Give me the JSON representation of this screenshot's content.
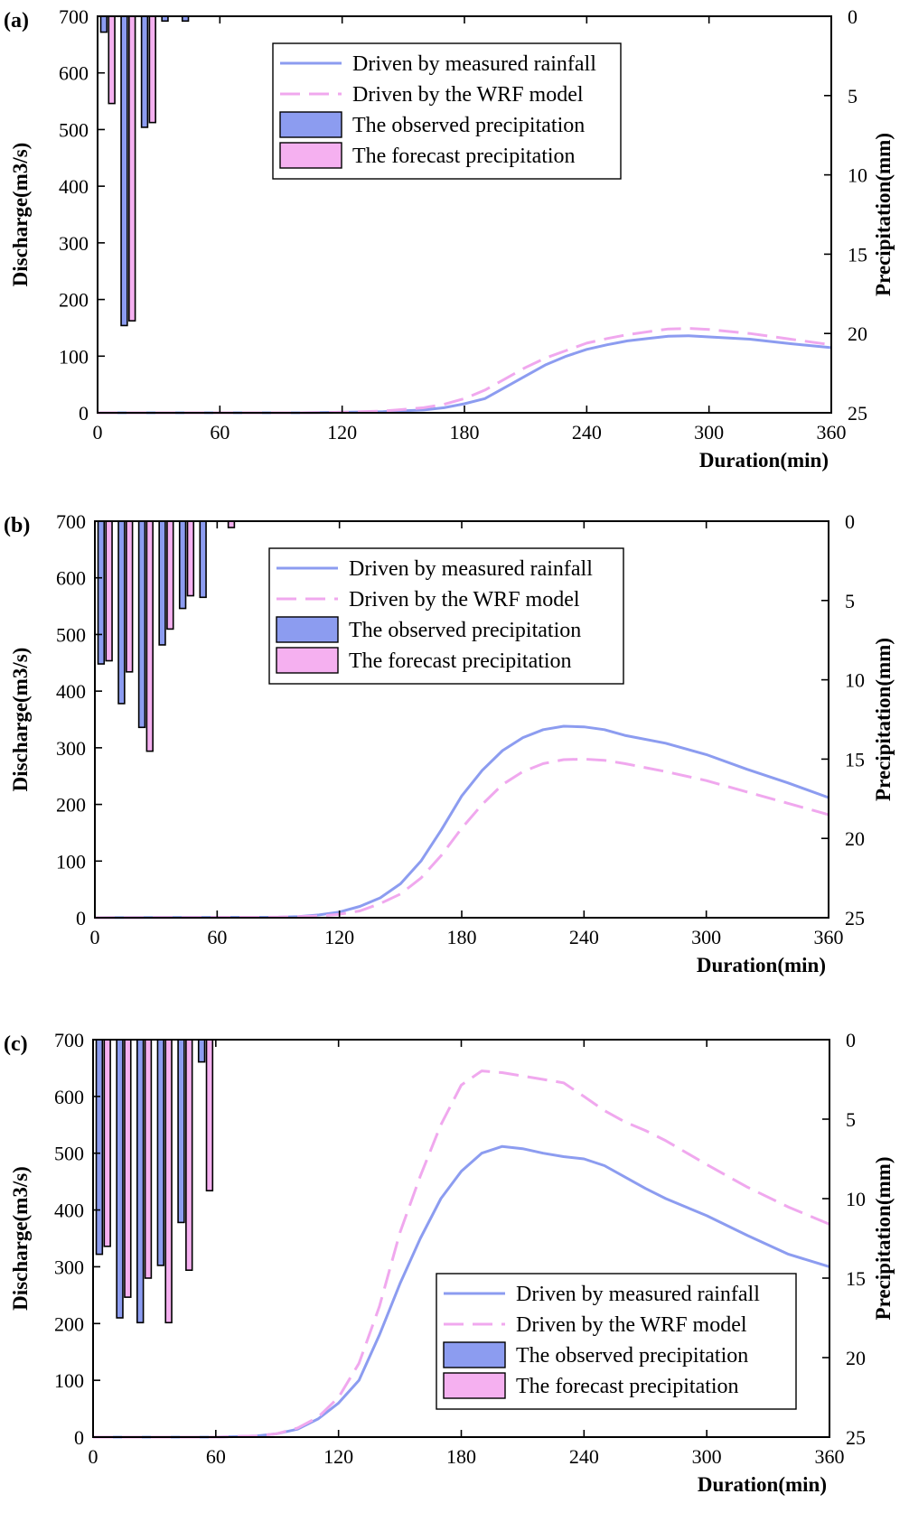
{
  "colors": {
    "measured": "#8c9cf0",
    "wrf": "#f0a8ee",
    "observed_bar": "#8c9cf0",
    "forecast_bar": "#f5b0f0",
    "axis": "#000000"
  },
  "chart_data": [
    {
      "type": "line",
      "panel_label": "(a)",
      "xlabel": "Duration(min)",
      "ylabel": "Discharge(m3/s)",
      "y2label": "Precipitation(mm)",
      "xlim": [
        0,
        360
      ],
      "ylim": [
        0,
        700
      ],
      "y2lim": [
        0,
        25
      ],
      "y2_inverted": true,
      "xticks": [
        0,
        60,
        120,
        180,
        240,
        300,
        360
      ],
      "yticks": [
        0,
        100,
        200,
        300,
        400,
        500,
        600,
        700
      ],
      "y2ticks": [
        0,
        5,
        10,
        15,
        20,
        25
      ],
      "legend_position": "top-center",
      "legend": [
        "Driven by measured rainfall",
        "Driven by the WRF model",
        "The observed precipitation",
        "The forecast precipitation"
      ],
      "series": [
        {
          "name": "Driven by measured rainfall",
          "style": "solid",
          "x": [
            0,
            100,
            120,
            140,
            160,
            170,
            180,
            190,
            200,
            210,
            220,
            230,
            240,
            250,
            260,
            270,
            280,
            290,
            300,
            320,
            340,
            360
          ],
          "y": [
            0,
            0,
            1,
            2,
            5,
            9,
            16,
            25,
            45,
            65,
            85,
            100,
            112,
            120,
            127,
            131,
            135,
            136,
            134,
            130,
            122,
            115
          ]
        },
        {
          "name": "Driven by the WRF model",
          "style": "dashed",
          "x": [
            0,
            100,
            120,
            140,
            160,
            170,
            180,
            190,
            200,
            210,
            220,
            230,
            240,
            250,
            260,
            270,
            280,
            290,
            300,
            320,
            340,
            360
          ],
          "y": [
            0,
            0,
            1,
            3,
            9,
            15,
            25,
            40,
            60,
            80,
            97,
            110,
            123,
            131,
            138,
            143,
            148,
            149,
            147,
            140,
            130,
            120
          ]
        }
      ],
      "bars": {
        "times": [
          5,
          15,
          25,
          35,
          45,
          55,
          65
        ],
        "observed": [
          1,
          19.5,
          7,
          0.3,
          0.3,
          0,
          0
        ],
        "forecast": [
          5.5,
          19.2,
          6.7,
          0,
          0,
          0,
          0
        ]
      }
    },
    {
      "type": "line",
      "panel_label": "(b)",
      "xlabel": "Duration(min)",
      "ylabel": "Discharge(m3/s)",
      "y2label": "Precipitation(mm)",
      "xlim": [
        0,
        360
      ],
      "ylim": [
        0,
        700
      ],
      "y2lim": [
        0,
        25
      ],
      "y2_inverted": true,
      "xticks": [
        0,
        60,
        120,
        180,
        240,
        300,
        360
      ],
      "yticks": [
        0,
        100,
        200,
        300,
        400,
        500,
        600,
        700
      ],
      "y2ticks": [
        0,
        5,
        10,
        15,
        20,
        25
      ],
      "legend_position": "top-center",
      "legend": [
        "Driven by measured rainfall",
        "Driven by the WRF model",
        "The observed precipitation",
        "The forecast precipitation"
      ],
      "series": [
        {
          "name": "Driven by measured rainfall",
          "style": "solid",
          "x": [
            0,
            90,
            100,
            110,
            120,
            130,
            140,
            150,
            160,
            170,
            180,
            190,
            200,
            210,
            220,
            230,
            240,
            250,
            260,
            280,
            300,
            320,
            340,
            360
          ],
          "y": [
            0,
            1,
            2,
            5,
            10,
            20,
            35,
            60,
            100,
            155,
            215,
            260,
            295,
            318,
            332,
            338,
            337,
            332,
            322,
            308,
            288,
            262,
            238,
            212
          ]
        },
        {
          "name": "Driven by the WRF model",
          "style": "dashed",
          "x": [
            0,
            90,
            100,
            110,
            120,
            130,
            140,
            150,
            160,
            170,
            180,
            190,
            200,
            210,
            220,
            230,
            240,
            250,
            260,
            280,
            300,
            320,
            340,
            360
          ],
          "y": [
            0,
            1,
            2,
            3,
            6,
            12,
            25,
            42,
            70,
            110,
            158,
            200,
            235,
            258,
            272,
            279,
            280,
            278,
            272,
            258,
            242,
            222,
            202,
            182
          ]
        }
      ],
      "bars": {
        "times": [
          5,
          15,
          25,
          35,
          45,
          55,
          65
        ],
        "observed": [
          9,
          11.5,
          13,
          7.8,
          5.5,
          4.8,
          0
        ],
        "forecast": [
          8.8,
          9.5,
          14.5,
          6.8,
          4.7,
          0,
          0.4
        ]
      }
    },
    {
      "type": "line",
      "panel_label": "(c)",
      "xlabel": "Duration(min)",
      "ylabel": "Discharge(m3/s)",
      "y2label": "Precipitation(mm)",
      "xlim": [
        0,
        360
      ],
      "ylim": [
        0,
        700
      ],
      "y2lim": [
        0,
        25
      ],
      "y2_inverted": true,
      "xticks": [
        0,
        60,
        120,
        180,
        240,
        300,
        360
      ],
      "yticks": [
        0,
        100,
        200,
        300,
        400,
        500,
        600,
        700
      ],
      "y2ticks": [
        0,
        5,
        10,
        15,
        20,
        25
      ],
      "legend_position": "bottom-right",
      "legend": [
        "Driven by measured rainfall",
        "Driven by the WRF model",
        "The observed precipitation",
        "The forecast precipitation"
      ],
      "series": [
        {
          "name": "Driven by measured rainfall",
          "style": "solid",
          "x": [
            0,
            60,
            80,
            90,
            100,
            110,
            120,
            130,
            140,
            150,
            160,
            170,
            180,
            190,
            200,
            210,
            220,
            230,
            240,
            250,
            260,
            270,
            280,
            300,
            320,
            340,
            360
          ],
          "y": [
            0,
            0,
            2,
            6,
            14,
            32,
            60,
            100,
            180,
            270,
            350,
            420,
            468,
            500,
            512,
            508,
            500,
            494,
            490,
            478,
            458,
            438,
            420,
            390,
            355,
            322,
            300
          ]
        },
        {
          "name": "Driven by the WRF model",
          "style": "dashed",
          "x": [
            0,
            60,
            80,
            90,
            100,
            110,
            120,
            130,
            140,
            150,
            160,
            170,
            180,
            190,
            200,
            210,
            220,
            230,
            240,
            250,
            260,
            270,
            280,
            300,
            320,
            340,
            360
          ],
          "y": [
            0,
            0,
            2,
            6,
            16,
            35,
            70,
            130,
            230,
            360,
            460,
            550,
            620,
            645,
            642,
            636,
            630,
            624,
            600,
            575,
            555,
            540,
            522,
            480,
            440,
            405,
            375
          ]
        }
      ],
      "bars": {
        "times": [
          5,
          15,
          25,
          35,
          45,
          55,
          65
        ],
        "observed": [
          13.5,
          17.5,
          17.8,
          14.2,
          11.5,
          1.4,
          0
        ],
        "forecast": [
          13,
          16.2,
          15,
          17.8,
          14.5,
          9.5,
          0
        ]
      }
    }
  ]
}
